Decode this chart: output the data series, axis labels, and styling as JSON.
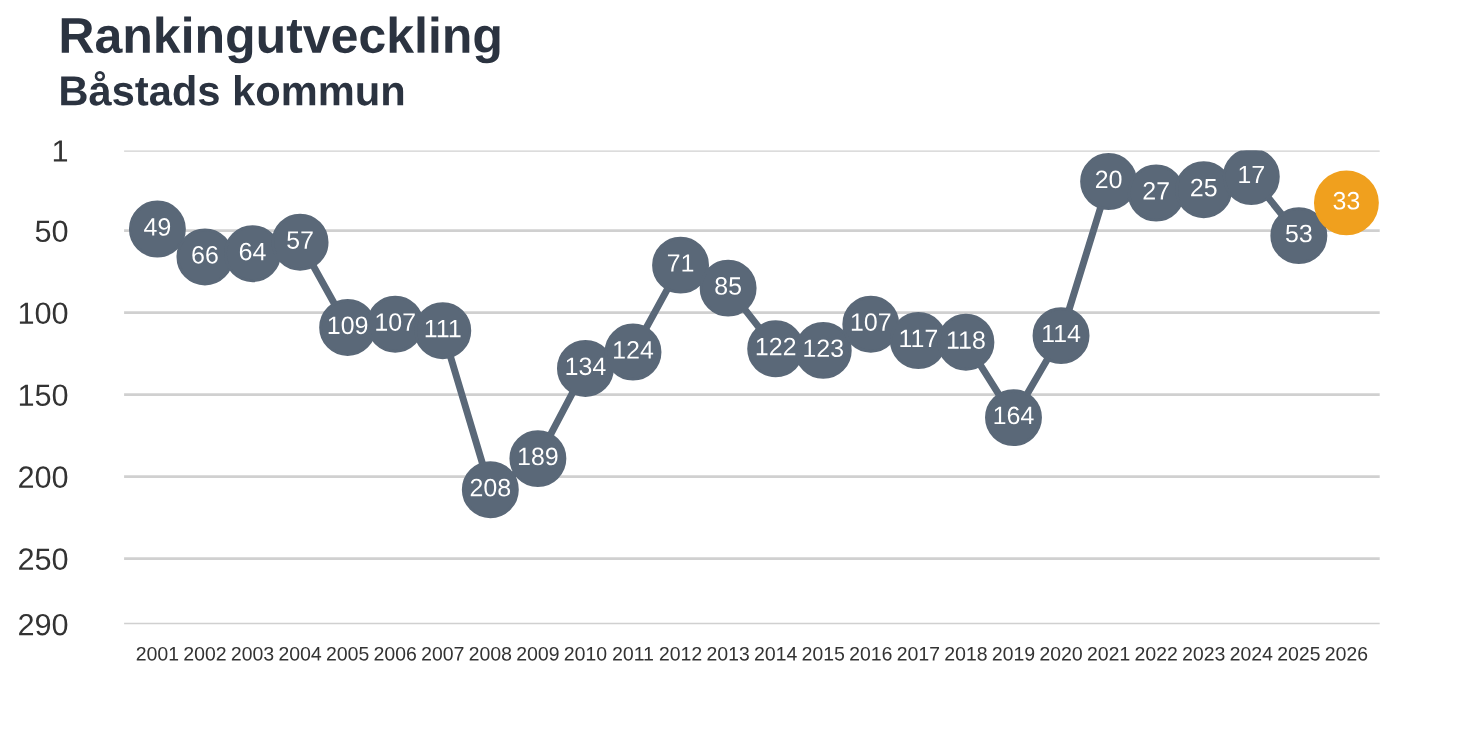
{
  "chart_data": {
    "type": "line",
    "title": "Rankingutveckling",
    "subtitle": "Båstads kommun",
    "categories": [
      "2001",
      "2002",
      "2003",
      "2004",
      "2005",
      "2006",
      "2007",
      "2008",
      "2009",
      "2010",
      "2011",
      "2012",
      "2013",
      "2014",
      "2015",
      "2016",
      "2017",
      "2018",
      "2019",
      "2020",
      "2021",
      "2022",
      "2023",
      "2024",
      "2025",
      "2026"
    ],
    "series": [
      {
        "color": "#5a6878",
        "values": [
          49,
          66,
          64,
          57,
          109,
          107,
          111,
          208,
          189,
          134,
          124,
          71,
          85,
          122,
          123,
          107,
          117,
          118,
          164,
          114,
          20,
          27,
          25,
          17,
          53,
          null
        ]
      },
      {
        "type": "scatter",
        "color": "#f0a01e",
        "values": [
          null,
          null,
          null,
          null,
          null,
          null,
          null,
          null,
          null,
          null,
          null,
          null,
          null,
          null,
          null,
          null,
          null,
          null,
          null,
          null,
          null,
          null,
          null,
          null,
          null,
          33
        ]
      }
    ],
    "ylim": [
      290,
      1
    ],
    "yticks": [
      1,
      50,
      100,
      150,
      200,
      250,
      290
    ],
    "grid": "y",
    "marker": "circle",
    "data_labels": true
  }
}
